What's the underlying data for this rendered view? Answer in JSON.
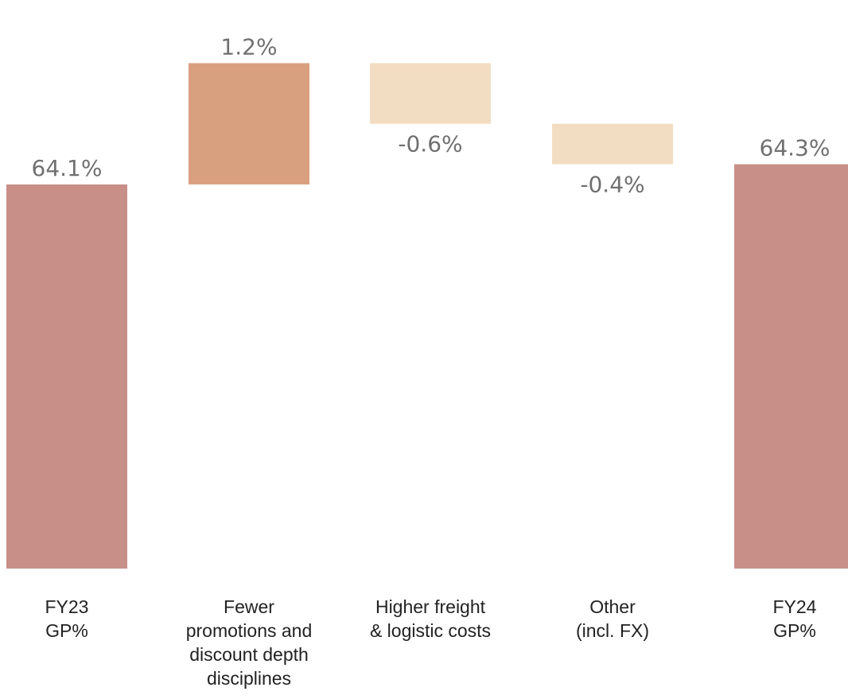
{
  "chart_data": {
    "type": "waterfall",
    "title": "",
    "xlabel": "",
    "ylabel": "",
    "unit": "%",
    "grid": false,
    "legend": "none",
    "categories": [
      [
        "FY23",
        "GP%"
      ],
      [
        "Fewer",
        "promotions and",
        "discount depth",
        "disciplines"
      ],
      [
        "Higher freight",
        "& logistic costs"
      ],
      [
        "Other",
        "(incl. FX)"
      ],
      [
        "FY24",
        "GP%"
      ]
    ],
    "steps": [
      {
        "kind": "total",
        "value": 64.1,
        "label": "64.1%",
        "color": "#C78F88"
      },
      {
        "kind": "increase",
        "value": 1.2,
        "label": "1.2%",
        "color": "#D9A07F"
      },
      {
        "kind": "decrease",
        "value": -0.6,
        "label": "-0.6%",
        "color": "#F3DDC2"
      },
      {
        "kind": "decrease",
        "value": -0.4,
        "label": "-0.4%",
        "color": "#F3DDC2"
      },
      {
        "kind": "total",
        "value": 64.3,
        "label": "64.3%",
        "color": "#C78F88"
      }
    ],
    "ylim": [
      60.3,
      65.5
    ]
  }
}
